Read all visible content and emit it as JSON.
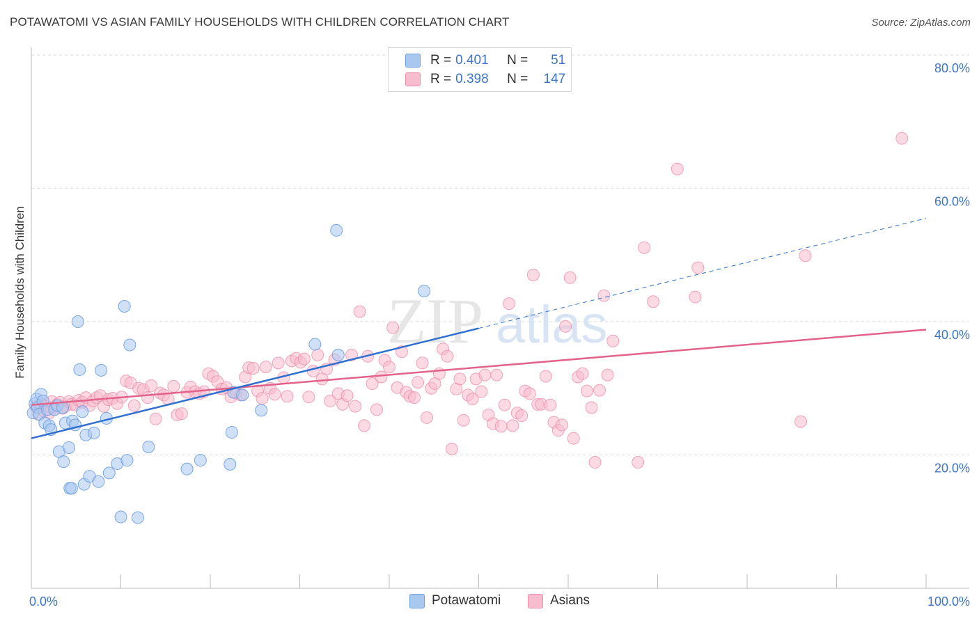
{
  "title": "POTAWATOMI VS ASIAN FAMILY HOUSEHOLDS WITH CHILDREN CORRELATION CHART",
  "source": "Source: ZipAtlas.com",
  "watermark": {
    "zip": "ZIP",
    "atlas": "atlas"
  },
  "legend": {
    "rows": [
      {
        "r_label": "R =",
        "r_value": "0.401",
        "n_label": "N =",
        "n_value": "51",
        "color": "#a9c8f0",
        "edge": "#6d9ee0"
      },
      {
        "r_label": "R =",
        "r_value": "0.398",
        "n_label": "N =",
        "n_value": "147",
        "color": "#f7bccd",
        "edge": "#ec8fab"
      }
    ]
  },
  "bottom_legend": {
    "potawatomi": "Potawatomi",
    "asians": "Asians"
  },
  "colors": {
    "blue": "#6d9ee0",
    "blue_fill": "#a9c8f0",
    "blue_line": "#2f6fcf",
    "pink": "#ec8fab",
    "pink_fill": "#f7bccd",
    "pink_line": "#e2628a",
    "grid": "#d9d9d9",
    "tick_text": "#3e74c8"
  },
  "chart_data": {
    "type": "scatter",
    "title": "POTAWATOMI VS ASIAN FAMILY HOUSEHOLDS WITH CHILDREN CORRELATION CHART",
    "xlabel": "",
    "ylabel": "Family Households with Children",
    "xlim": [
      0,
      100
    ],
    "ylim": [
      0,
      80
    ],
    "x_tick_labels": [
      "0.0%",
      "100.0%"
    ],
    "y_ticks": [
      20,
      40,
      60,
      80
    ],
    "y_tick_labels": [
      "20.0%",
      "40.0%",
      "60.0%",
      "80.0%"
    ],
    "grid": true,
    "series": [
      {
        "name": "Potawatomi",
        "r": 0.401,
        "n": 51,
        "trend": {
          "x": [
            0,
            50
          ],
          "y": [
            22.5,
            39
          ],
          "dashed_to": [
            100,
            55.5
          ]
        },
        "points": [
          [
            0.2,
            26.3
          ],
          [
            0.4,
            27.7
          ],
          [
            0.6,
            28.4
          ],
          [
            0.7,
            27.1
          ],
          [
            0.9,
            26.1
          ],
          [
            1.1,
            29.1
          ],
          [
            1.3,
            28.1
          ],
          [
            1.5,
            24.8
          ],
          [
            1.8,
            26.8
          ],
          [
            2.0,
            24.4
          ],
          [
            2.2,
            23.8
          ],
          [
            2.6,
            26.8
          ],
          [
            2.9,
            27.4
          ],
          [
            3.1,
            20.5
          ],
          [
            3.5,
            27.1
          ],
          [
            3.6,
            19.0
          ],
          [
            3.8,
            24.8
          ],
          [
            4.2,
            21.1
          ],
          [
            4.3,
            15.0
          ],
          [
            4.5,
            15.0
          ],
          [
            4.6,
            25.1
          ],
          [
            4.9,
            24.5
          ],
          [
            5.2,
            40.0
          ],
          [
            5.4,
            32.8
          ],
          [
            5.7,
            26.5
          ],
          [
            5.9,
            15.6
          ],
          [
            6.1,
            23.0
          ],
          [
            6.5,
            16.8
          ],
          [
            7.0,
            23.3
          ],
          [
            7.5,
            16.0
          ],
          [
            7.8,
            32.7
          ],
          [
            8.4,
            25.5
          ],
          [
            8.7,
            17.3
          ],
          [
            9.6,
            18.7
          ],
          [
            10.0,
            10.7
          ],
          [
            10.4,
            42.3
          ],
          [
            10.7,
            19.2
          ],
          [
            11.0,
            36.5
          ],
          [
            11.9,
            10.6
          ],
          [
            13.1,
            21.2
          ],
          [
            17.4,
            17.9
          ],
          [
            18.9,
            19.2
          ],
          [
            22.2,
            18.6
          ],
          [
            22.4,
            23.4
          ],
          [
            22.6,
            29.4
          ],
          [
            23.6,
            29.0
          ],
          [
            25.7,
            26.7
          ],
          [
            31.7,
            36.6
          ],
          [
            34.1,
            53.7
          ],
          [
            34.3,
            35.0
          ],
          [
            43.9,
            44.6
          ]
        ]
      },
      {
        "name": "Asians",
        "r": 0.398,
        "n": 147,
        "trend": {
          "x": [
            0,
            100
          ],
          "y": [
            27.5,
            38.8
          ]
        },
        "points": [
          [
            0.5,
            27.3
          ],
          [
            0.8,
            26.1
          ],
          [
            1.1,
            27.7
          ],
          [
            1.4,
            26.6
          ],
          [
            1.7,
            27.3
          ],
          [
            2.0,
            26.3
          ],
          [
            2.3,
            28.0
          ],
          [
            2.6,
            27.0
          ],
          [
            2.9,
            27.6
          ],
          [
            3.2,
            27.9
          ],
          [
            3.5,
            27.0
          ],
          [
            3.8,
            27.3
          ],
          [
            4.2,
            28.0
          ],
          [
            4.5,
            27.6
          ],
          [
            4.9,
            27.5
          ],
          [
            5.3,
            28.2
          ],
          [
            5.7,
            27.9
          ],
          [
            6.1,
            28.6
          ],
          [
            6.5,
            27.4
          ],
          [
            6.9,
            28.1
          ],
          [
            7.3,
            28.6
          ],
          [
            7.7,
            28.9
          ],
          [
            8.1,
            27.3
          ],
          [
            8.6,
            28.3
          ],
          [
            9.1,
            28.5
          ],
          [
            9.6,
            27.7
          ],
          [
            10.1,
            28.7
          ],
          [
            10.6,
            31.1
          ],
          [
            11.1,
            30.8
          ],
          [
            11.5,
            27.4
          ],
          [
            12.0,
            30.0
          ],
          [
            12.5,
            29.8
          ],
          [
            13.0,
            28.6
          ],
          [
            13.4,
            30.4
          ],
          [
            13.9,
            25.4
          ],
          [
            14.4,
            29.3
          ],
          [
            14.8,
            29.0
          ],
          [
            15.3,
            28.4
          ],
          [
            15.9,
            30.3
          ],
          [
            16.3,
            26.0
          ],
          [
            16.8,
            26.2
          ],
          [
            17.4,
            29.4
          ],
          [
            17.8,
            30.2
          ],
          [
            18.3,
            29.5
          ],
          [
            18.8,
            29.2
          ],
          [
            19.3,
            29.5
          ],
          [
            19.8,
            32.2
          ],
          [
            20.3,
            31.8
          ],
          [
            20.8,
            31.0
          ],
          [
            21.3,
            29.9
          ],
          [
            21.8,
            30.1
          ],
          [
            22.3,
            28.7
          ],
          [
            22.9,
            29.3
          ],
          [
            23.4,
            29.0
          ],
          [
            23.9,
            31.7
          ],
          [
            24.3,
            33.1
          ],
          [
            24.8,
            33.0
          ],
          [
            25.3,
            29.6
          ],
          [
            25.8,
            28.5
          ],
          [
            26.2,
            33.2
          ],
          [
            26.7,
            30.0
          ],
          [
            27.2,
            29.1
          ],
          [
            27.6,
            33.8
          ],
          [
            28.2,
            31.6
          ],
          [
            28.6,
            28.8
          ],
          [
            29.1,
            34.1
          ],
          [
            29.6,
            34.5
          ],
          [
            30.1,
            33.9
          ],
          [
            30.5,
            34.4
          ],
          [
            31.0,
            28.7
          ],
          [
            31.5,
            32.6
          ],
          [
            32.0,
            35.0
          ],
          [
            32.5,
            31.4
          ],
          [
            33.0,
            32.9
          ],
          [
            33.4,
            28.1
          ],
          [
            33.9,
            34.3
          ],
          [
            34.3,
            29.2
          ],
          [
            34.8,
            27.6
          ],
          [
            35.3,
            28.9
          ],
          [
            35.8,
            35.0
          ],
          [
            36.2,
            27.3
          ],
          [
            36.7,
            41.5
          ],
          [
            37.2,
            24.4
          ],
          [
            37.6,
            34.8
          ],
          [
            38.1,
            30.7
          ],
          [
            38.6,
            26.8
          ],
          [
            39.1,
            31.7
          ],
          [
            39.5,
            34.2
          ],
          [
            40.0,
            33.2
          ],
          [
            40.4,
            39.1
          ],
          [
            40.9,
            30.1
          ],
          [
            41.4,
            35.5
          ],
          [
            41.9,
            29.4
          ],
          [
            42.3,
            28.8
          ],
          [
            42.8,
            28.6
          ],
          [
            43.2,
            30.9
          ],
          [
            43.7,
            33.8
          ],
          [
            44.2,
            25.6
          ],
          [
            44.7,
            30.0
          ],
          [
            45.1,
            30.7
          ],
          [
            45.6,
            32.2
          ],
          [
            46.0,
            35.9
          ],
          [
            46.5,
            34.8
          ],
          [
            47.0,
            20.9
          ],
          [
            47.5,
            29.9
          ],
          [
            47.9,
            31.4
          ],
          [
            48.3,
            25.2
          ],
          [
            48.8,
            29.0
          ],
          [
            49.3,
            28.4
          ],
          [
            49.7,
            31.4
          ],
          [
            50.3,
            29.5
          ],
          [
            50.7,
            32.0
          ],
          [
            51.1,
            26.0
          ],
          [
            51.6,
            24.7
          ],
          [
            52.0,
            32.0
          ],
          [
            52.5,
            24.3
          ],
          [
            52.9,
            27.5
          ],
          [
            53.4,
            42.7
          ],
          [
            53.8,
            24.4
          ],
          [
            54.3,
            26.3
          ],
          [
            54.8,
            25.9
          ],
          [
            55.2,
            29.6
          ],
          [
            55.7,
            29.2
          ],
          [
            56.1,
            47.0
          ],
          [
            56.6,
            27.6
          ],
          [
            57.0,
            27.6
          ],
          [
            57.5,
            31.8
          ],
          [
            58.0,
            27.5
          ],
          [
            58.4,
            24.9
          ],
          [
            58.9,
            23.7
          ],
          [
            59.3,
            24.5
          ],
          [
            59.7,
            39.3
          ],
          [
            60.2,
            46.6
          ],
          [
            60.6,
            22.5
          ],
          [
            61.1,
            31.7
          ],
          [
            61.6,
            32.2
          ],
          [
            62.1,
            29.6
          ],
          [
            62.6,
            27.1
          ],
          [
            63.0,
            18.9
          ],
          [
            63.5,
            29.7
          ],
          [
            64.0,
            43.9
          ],
          [
            64.4,
            32.0
          ],
          [
            65.0,
            37.1
          ],
          [
            67.8,
            18.9
          ],
          [
            72.2,
            62.9
          ],
          [
            74.5,
            48.1
          ],
          [
            86.0,
            25.0
          ],
          [
            86.5,
            49.9
          ],
          [
            97.3,
            67.5
          ],
          [
            74.2,
            43.7
          ],
          [
            68.5,
            51.1
          ],
          [
            69.5,
            43.0
          ]
        ]
      }
    ]
  }
}
